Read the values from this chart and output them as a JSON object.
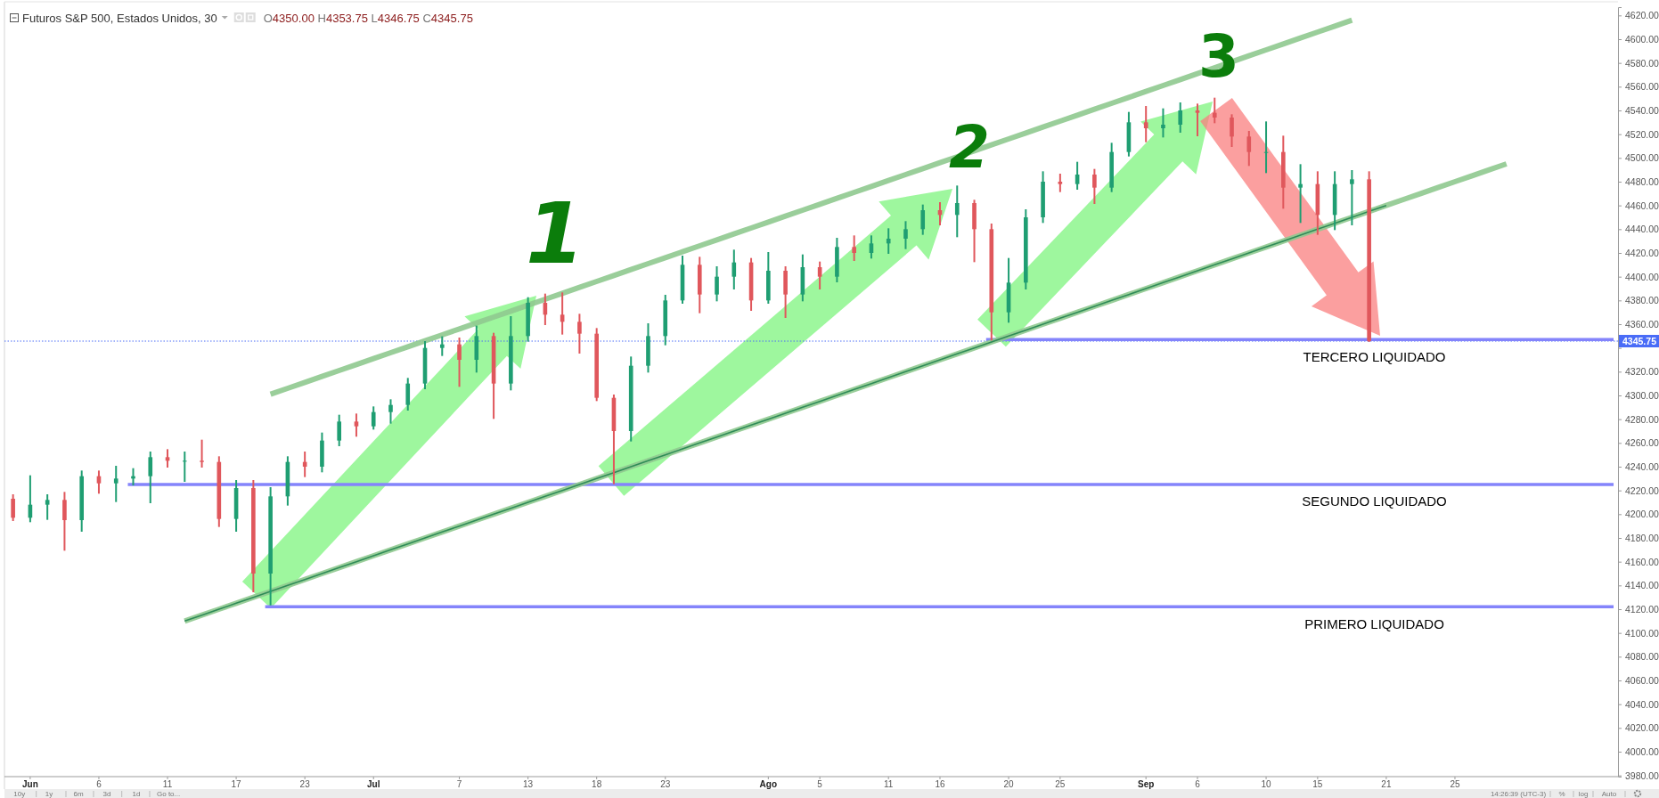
{
  "chart_data": {
    "type": "candlestick",
    "title": "Futuros S&P 500, Estados Unidos, 30",
    "subtitle": "O4350.00 H4353.75 L4346.75 C4345.75",
    "categories": [
      null,
      "Jun",
      null,
      null,
      null,
      "6",
      null,
      null,
      null,
      "11",
      null,
      null,
      null,
      "17",
      null,
      null,
      null,
      "23",
      null,
      null,
      null,
      "Jul",
      null,
      null,
      null,
      null,
      "7",
      null,
      null,
      null,
      "13",
      null,
      null,
      null,
      "18",
      null,
      null,
      null,
      "23",
      null,
      null,
      null,
      null,
      null,
      "Ago",
      null,
      null,
      "5",
      null,
      null,
      null,
      "11",
      null,
      null,
      "16",
      null,
      null,
      null,
      "20",
      null,
      null,
      "25",
      null,
      null,
      null,
      null,
      "Sep",
      null,
      null,
      "6",
      null,
      null,
      null,
      "10",
      null,
      null,
      "15",
      null,
      null,
      null,
      "21",
      null,
      null,
      null,
      "25",
      null,
      null,
      null,
      null,
      null,
      null,
      null,
      null,
      null
    ],
    "ohlc": [
      [
        4213,
        4216,
        4195,
        4197
      ],
      [
        4197,
        4232,
        4194,
        4208
      ],
      [
        4208,
        4216,
        4196,
        4212
      ],
      [
        4212,
        4218,
        4170,
        4195
      ],
      [
        4195,
        4236,
        4186,
        4232
      ],
      [
        4232,
        4236,
        4218,
        4226
      ],
      [
        4226,
        4240,
        4211,
        4230
      ],
      [
        4230,
        4238,
        4225,
        4232
      ],
      [
        4232,
        4252,
        4210,
        4248
      ],
      [
        4248,
        4254,
        4240,
        4245
      ],
      [
        4245,
        4252,
        4228,
        4245
      ],
      [
        4245,
        4262,
        4240,
        4244
      ],
      [
        4244,
        4248,
        4190,
        4196
      ],
      [
        4196,
        4228,
        4186,
        4222
      ],
      [
        4222,
        4228,
        4135,
        4150
      ],
      [
        4150,
        4222,
        4124,
        4215
      ],
      [
        4215,
        4248,
        4208,
        4244
      ],
      [
        4244,
        4252,
        4232,
        4240
      ],
      [
        4240,
        4268,
        4236,
        4262
      ],
      [
        4262,
        4283,
        4258,
        4278
      ],
      [
        4278,
        4284,
        4266,
        4274
      ],
      [
        4274,
        4290,
        4272,
        4286
      ],
      [
        4286,
        4296,
        4277,
        4292
      ],
      [
        4292,
        4314,
        4288,
        4310
      ],
      [
        4310,
        4345,
        4306,
        4340
      ],
      [
        4340,
        4349,
        4334,
        4343
      ],
      [
        4343,
        4348,
        4308,
        4330
      ],
      [
        4330,
        4358,
        4320,
        4350
      ],
      [
        4350,
        4352,
        4281,
        4310
      ],
      [
        4310,
        4366,
        4305,
        4350
      ],
      [
        4350,
        4382,
        4346,
        4378
      ],
      [
        4378,
        4385,
        4360,
        4368
      ],
      [
        4368,
        4386,
        4352,
        4362
      ],
      [
        4362,
        4368,
        4336,
        4352
      ],
      [
        4352,
        4356,
        4296,
        4298
      ],
      [
        4298,
        4300,
        4226,
        4270
      ],
      [
        4270,
        4332,
        4262,
        4325
      ],
      [
        4325,
        4360,
        4320,
        4350
      ],
      [
        4350,
        4384,
        4343,
        4380
      ],
      [
        4380,
        4417,
        4378,
        4410
      ],
      [
        4410,
        4416,
        4370,
        4385
      ],
      [
        4385,
        4408,
        4380,
        4400
      ],
      [
        4400,
        4422,
        4390,
        4412
      ],
      [
        4412,
        4415,
        4372,
        4380
      ],
      [
        4380,
        4420,
        4378,
        4405
      ],
      [
        4405,
        4408,
        4366,
        4385
      ],
      [
        4385,
        4418,
        4380,
        4408
      ],
      [
        4408,
        4412,
        4390,
        4400
      ],
      [
        4400,
        4432,
        4396,
        4425
      ],
      [
        4425,
        4434,
        4414,
        4420
      ],
      [
        4420,
        4434,
        4416,
        4428
      ],
      [
        4428,
        4440,
        4420,
        4432
      ],
      [
        4432,
        4446,
        4424,
        4440
      ],
      [
        4440,
        4460,
        4436,
        4456
      ],
      [
        4456,
        4462,
        4444,
        4452
      ],
      [
        4452,
        4476,
        4434,
        4462
      ],
      [
        4462,
        4464,
        4413,
        4440
      ],
      [
        4440,
        4444,
        4347,
        4370
      ],
      [
        4370,
        4415,
        4362,
        4395
      ],
      [
        4395,
        4456,
        4390,
        4450
      ],
      [
        4450,
        4488,
        4446,
        4480
      ],
      [
        4480,
        4486,
        4472,
        4478
      ],
      [
        4478,
        4496,
        4474,
        4486
      ],
      [
        4486,
        4490,
        4462,
        4475
      ],
      [
        4475,
        4512,
        4472,
        4505
      ],
      [
        4505,
        4538,
        4502,
        4530
      ],
      [
        4530,
        4543,
        4514,
        4525
      ],
      [
        4525,
        4541,
        4518,
        4528
      ],
      [
        4528,
        4546,
        4522,
        4540
      ],
      [
        4540,
        4545,
        4519,
        4538
      ],
      [
        4538,
        4550,
        4530,
        4534
      ],
      [
        4534,
        4536,
        4510,
        4518
      ],
      [
        4518,
        4522,
        4494,
        4505
      ],
      [
        4505,
        4530,
        4488,
        4505
      ],
      [
        4505,
        4518,
        4458,
        4475
      ],
      [
        4475,
        4494,
        4446,
        4478
      ],
      [
        4478,
        4488,
        4436,
        4452
      ],
      [
        4452,
        4488,
        4440,
        4478
      ],
      [
        4478,
        4489,
        4444,
        4482
      ],
      [
        4482,
        4488,
        4345.75,
        4345.75
      ],
      null,
      null,
      null,
      null,
      null,
      null,
      null,
      null,
      null,
      null,
      null,
      null,
      null,
      null
    ],
    "series": [
      {
        "type": "line",
        "color": "#8fc98f",
        "values": [
          null,
          null,
          null,
          null,
          null,
          null,
          null,
          null,
          null,
          null,
          null,
          null,
          null,
          null,
          null,
          4301,
          4306,
          4311,
          4316,
          4321,
          4326,
          4331,
          4336,
          4341,
          4346,
          4351,
          4356,
          4361,
          4366,
          4371,
          4376,
          4381,
          4386,
          4391,
          4396,
          4401,
          4406,
          4411,
          4416,
          4421,
          4426,
          4431,
          4436,
          4441,
          4446,
          4451,
          4456,
          4461,
          4466,
          4471,
          4476,
          4481,
          4486,
          4491,
          4496,
          4501,
          4506,
          4511,
          4516,
          4521,
          4526,
          4531,
          4536,
          4541,
          4546,
          4551,
          4556,
          4561,
          4566,
          4571,
          4576,
          4581,
          4586,
          4591,
          4596,
          4601,
          4606,
          4611,
          4616,
          null,
          null,
          null,
          null,
          null,
          null,
          null,
          null,
          null,
          null,
          null,
          null,
          null,
          null,
          null
        ]
      },
      {
        "type": "line",
        "color": "#8fc98f",
        "values": [
          null,
          null,
          null,
          null,
          null,
          null,
          null,
          null,
          null,
          null,
          4110,
          4115,
          4120,
          4125,
          4130,
          4135,
          4140,
          4145,
          4150,
          4155,
          4160,
          4165,
          4170,
          4175,
          4180,
          4185,
          4190,
          4195,
          4200,
          4205,
          4210,
          4215,
          4220,
          4225,
          4230,
          4235,
          4240,
          4245,
          4250,
          4255,
          4260,
          4265,
          4270,
          4275,
          4280,
          4285,
          4290,
          4295,
          4300,
          4305,
          4310,
          4315,
          4320,
          4325,
          4330,
          4335,
          4340,
          4345,
          4350,
          4355,
          4360,
          4365,
          4370,
          4375,
          4380,
          4385,
          4390,
          4395,
          4400,
          4405,
          4410,
          4415,
          4420,
          4425,
          4430,
          4435,
          4440,
          4445,
          4450,
          4455,
          4460,
          4465,
          4470,
          4475,
          4480,
          4485,
          4490,
          4495,
          null,
          null,
          null,
          null,
          null,
          null
        ]
      },
      {
        "type": "line",
        "color": "#2e8b57",
        "values": [
          null,
          null,
          null,
          null,
          null,
          null,
          null,
          null,
          null,
          null,
          4110,
          4115,
          4120,
          4125,
          4130,
          4135,
          4140,
          4145,
          4150,
          4155,
          4160,
          4165,
          4170,
          4175,
          4180,
          4185,
          4190,
          4195,
          4200,
          4205,
          4210,
          4215,
          4220,
          4225,
          4230,
          4235,
          4240,
          4245,
          4250,
          4255,
          4260,
          4265,
          4270,
          4275,
          4280,
          4285,
          4290,
          4295,
          4300,
          4305,
          4310,
          4315,
          4320,
          4325,
          4330,
          4335,
          4340,
          4345,
          4350,
          4355,
          4360,
          4365,
          4370,
          4375,
          4380,
          4385,
          4390,
          4395,
          4400,
          4405,
          4410,
          4415,
          4420,
          4425,
          4430,
          4435,
          4440,
          4445,
          4450,
          4455,
          4460,
          null,
          null,
          null,
          null,
          null,
          null,
          null,
          null,
          null,
          null,
          null,
          null,
          null
        ]
      }
    ],
    "ylim": [
      3979,
      4627
    ],
    "yticks": [
      {
        "value": 3980,
        "label": "3980.00"
      },
      {
        "value": 4000,
        "label": "4000.00"
      },
      {
        "value": 4020,
        "label": "4020.00"
      },
      {
        "value": 4040,
        "label": "4040.00"
      },
      {
        "value": 4060,
        "label": "4060.00"
      },
      {
        "value": 4080,
        "label": "4080.00"
      },
      {
        "value": 4100,
        "label": "4100.00"
      },
      {
        "value": 4120,
        "label": "4120.00"
      },
      {
        "value": 4140,
        "label": "4140.00"
      },
      {
        "value": 4160,
        "label": "4160.00"
      },
      {
        "value": 4180,
        "label": "4180.00"
      },
      {
        "value": 4200,
        "label": "4200.00"
      },
      {
        "value": 4220,
        "label": "4220.00"
      },
      {
        "value": 4240,
        "label": "4240.00"
      },
      {
        "value": 4260,
        "label": "4260.00"
      },
      {
        "value": 4280,
        "label": "4280.00"
      },
      {
        "value": 4300,
        "label": "4300.00"
      },
      {
        "value": 4320,
        "label": "4320.00"
      },
      {
        "value": 4340,
        "label": null
      },
      {
        "value": 4360,
        "label": "4360.00"
      },
      {
        "value": 4380,
        "label": "4380.00"
      },
      {
        "value": 4400,
        "label": "4400.00"
      },
      {
        "value": 4420,
        "label": "4420.00"
      },
      {
        "value": 4440,
        "label": "4440.00"
      },
      {
        "value": 4460,
        "label": "4460.00"
      },
      {
        "value": 4480,
        "label": "4480.00"
      },
      {
        "value": 4500,
        "label": "4500.00"
      },
      {
        "value": 4520,
        "label": "4520.00"
      },
      {
        "value": 4540,
        "label": "4540.00"
      },
      {
        "value": 4560,
        "label": "4560.00"
      },
      {
        "value": 4580,
        "label": "4580.00"
      },
      {
        "value": 4600,
        "label": "4600.00"
      },
      {
        "value": 4620,
        "label": "4620.00"
      }
    ],
    "ref_lines": [
      {
        "axis": "y",
        "value": 4345.75,
        "label": "4345.75",
        "color": "#4a6cf7",
        "line_style": "dotted"
      },
      {
        "axis": "y",
        "value": 4347,
        "label": "TERCERO LIQUIDADO",
        "color": "#8484fb"
      },
      {
        "axis": "y",
        "value": 4225,
        "label": "SEGUNDO LIQUIDADO",
        "color": "#8484fb"
      },
      {
        "axis": "y",
        "value": 4122,
        "label": "PRIMERO LIQUIDADO",
        "color": "#8484fb"
      }
    ],
    "annotations": [
      "1",
      "2",
      {
        "text": "3",
        "y": 4550
      },
      "10y",
      "1y",
      "6m",
      "3d",
      "1d",
      "Go to...",
      "14:26:39 (UTC-3)",
      "%",
      "log",
      "Auto"
    ]
  }
}
